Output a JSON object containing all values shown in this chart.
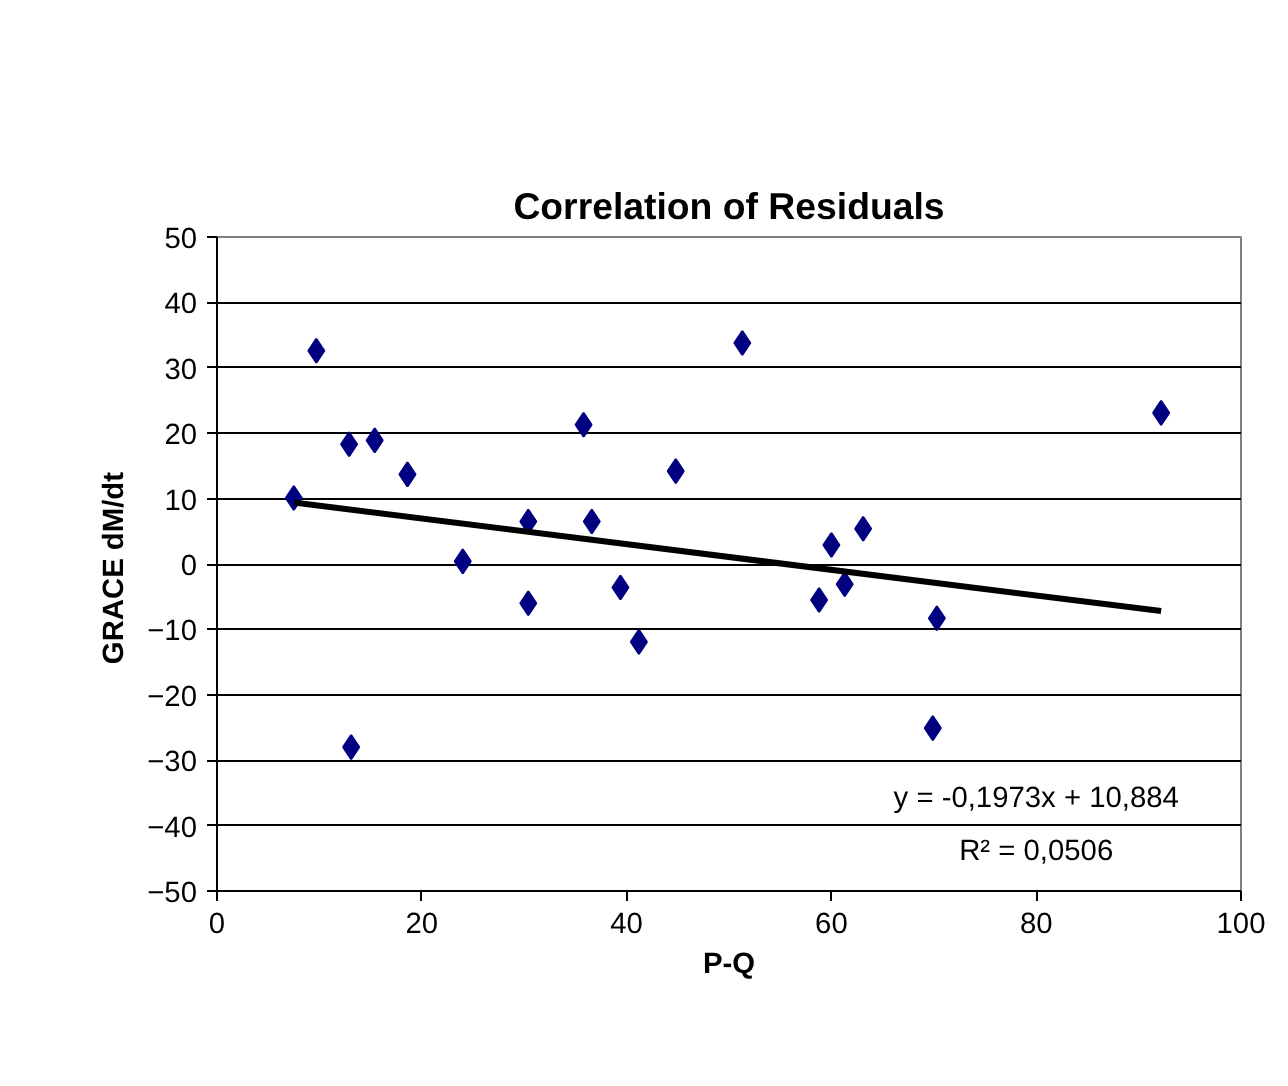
{
  "chart_data": {
    "type": "scatter",
    "title": "Correlation of Residuals",
    "xlabel": "P-Q",
    "ylabel": "GRACE  dM/dt",
    "series": [
      {
        "color": "#000080",
        "marker": "diamond",
        "x": [
          7.5,
          9.7,
          12.9,
          13.1,
          15.4,
          18.6,
          24.0,
          30.4,
          30.4,
          35.8,
          36.6,
          39.4,
          41.2,
          44.8,
          51.3,
          58.8,
          60.0,
          61.3,
          63.1,
          70.3,
          69.9,
          92.2
        ],
        "values": [
          10.1,
          32.6,
          18.3,
          -28,
          18.9,
          13.7,
          0.4,
          6.5,
          -6,
          21.3,
          6.5,
          -3.6,
          -11.9,
          14.2,
          33.8,
          -5.5,
          2.9,
          -3.1,
          5.4,
          -8.3,
          -25.1,
          23.1
        ]
      },
      {
        "type": "line",
        "color": "#000000",
        "x": [
          7.5,
          92.2
        ],
        "values": [
          9.4,
          -7.2
        ]
      }
    ],
    "annotations": [
      "y = -0,1973x + 10,884",
      "R² = 0,0506"
    ],
    "xlim": [
      0,
      100
    ],
    "xticks": [
      0,
      20,
      40,
      60,
      80,
      100
    ],
    "ylim": [
      -50,
      50
    ],
    "yticks": [
      -50,
      -40,
      -30,
      -20,
      -10,
      0,
      10,
      20,
      30,
      40,
      50
    ],
    "grid": "y"
  }
}
